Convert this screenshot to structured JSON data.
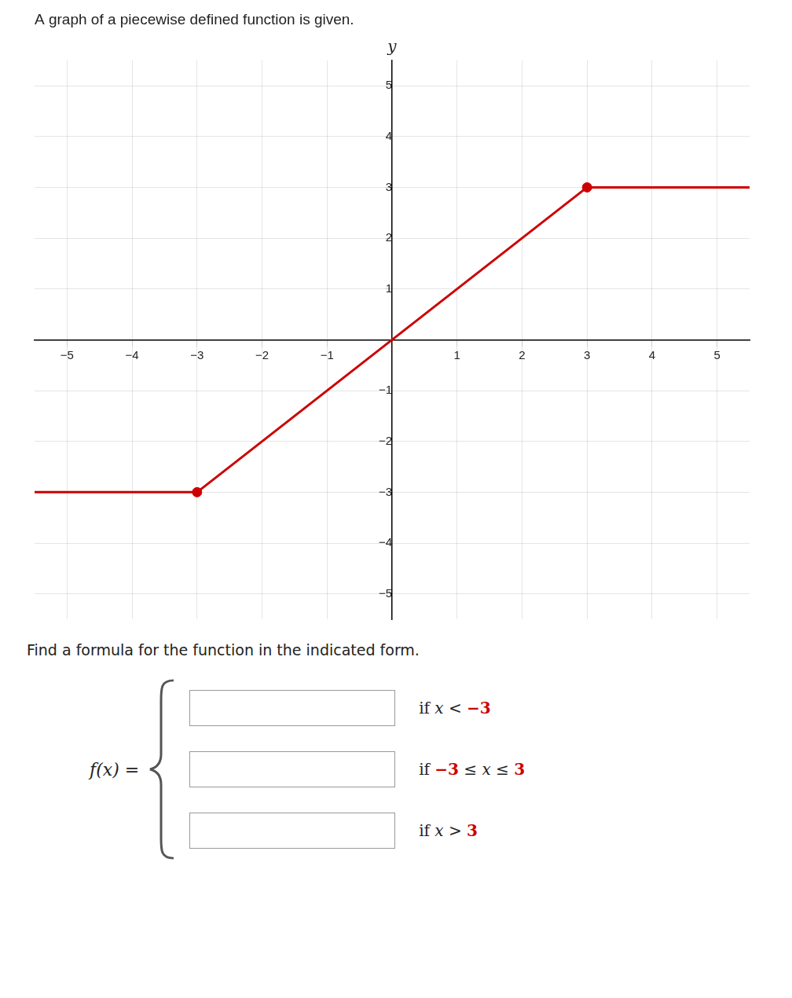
{
  "chart_data": {
    "type": "line",
    "title": "A graph of a piecewise defined function is given.",
    "ylabel": "y",
    "annotations": [
      "Find a formula for the function in the indicated form.",
      "f(x) =",
      "if x < −3",
      "if −3 ≤ x ≤ 3",
      "if x > 3"
    ],
    "color": "#cc0000",
    "series": [
      {
        "x": [
          -5.5,
          -3
        ],
        "values": [
          -3,
          -3
        ]
      },
      {
        "x": [
          -3,
          3
        ],
        "values": [
          -3,
          3
        ]
      },
      {
        "x": [
          3,
          5.5
        ],
        "values": [
          3,
          3
        ]
      },
      {
        "type": "scatter",
        "marker": "circle",
        "x": [
          -3,
          3
        ],
        "values": [
          -3,
          3
        ]
      }
    ],
    "xlim": [
      -5.5,
      5.5
    ],
    "ylim": [
      -5.5,
      5.5
    ],
    "xticks": [
      {
        "value": -5,
        "label": "−5"
      },
      {
        "value": -4,
        "label": "−4"
      },
      {
        "value": -3,
        "label": "−3"
      },
      {
        "value": -2,
        "label": "−2"
      },
      {
        "value": -1,
        "label": "−1"
      },
      1,
      2,
      3,
      4,
      5
    ],
    "yticks": [
      {
        "value": -5,
        "label": "−5"
      },
      {
        "value": -4,
        "label": "−4"
      },
      {
        "value": -3,
        "label": "−3"
      },
      {
        "value": -2,
        "label": "−2"
      },
      {
        "value": -1,
        "label": "−1"
      },
      1,
      2,
      3,
      4,
      5
    ],
    "grid": true
  }
}
